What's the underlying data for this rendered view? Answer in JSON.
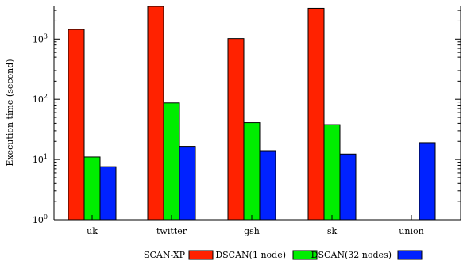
{
  "chart_data": {
    "type": "bar",
    "scale_y": "log",
    "ylim": [
      1,
      3500
    ],
    "ylabel": "Execution time (second)",
    "y_ticks": [
      {
        "value": 1,
        "base": "10",
        "exp": "0"
      },
      {
        "value": 10,
        "base": "10",
        "exp": "1"
      },
      {
        "value": 100,
        "base": "10",
        "exp": "2"
      },
      {
        "value": 1000,
        "base": "10",
        "exp": "3"
      }
    ],
    "categories": [
      "uk",
      "twitter",
      "gsh",
      "sk",
      "union"
    ],
    "series": [
      {
        "name": "SCAN-XP",
        "color": "#ff2200",
        "values": [
          1450,
          3500,
          1020,
          3250,
          null
        ]
      },
      {
        "name": "DSCAN(1 node)",
        "color": "#00ee00",
        "values": [
          11,
          87,
          41,
          38,
          null
        ]
      },
      {
        "name": "DSCAN(32 nodes)",
        "color": "#0022ff",
        "values": [
          7.6,
          16.5,
          14,
          12.3,
          19
        ]
      }
    ],
    "legend_position": "bottom",
    "grid": false
  }
}
